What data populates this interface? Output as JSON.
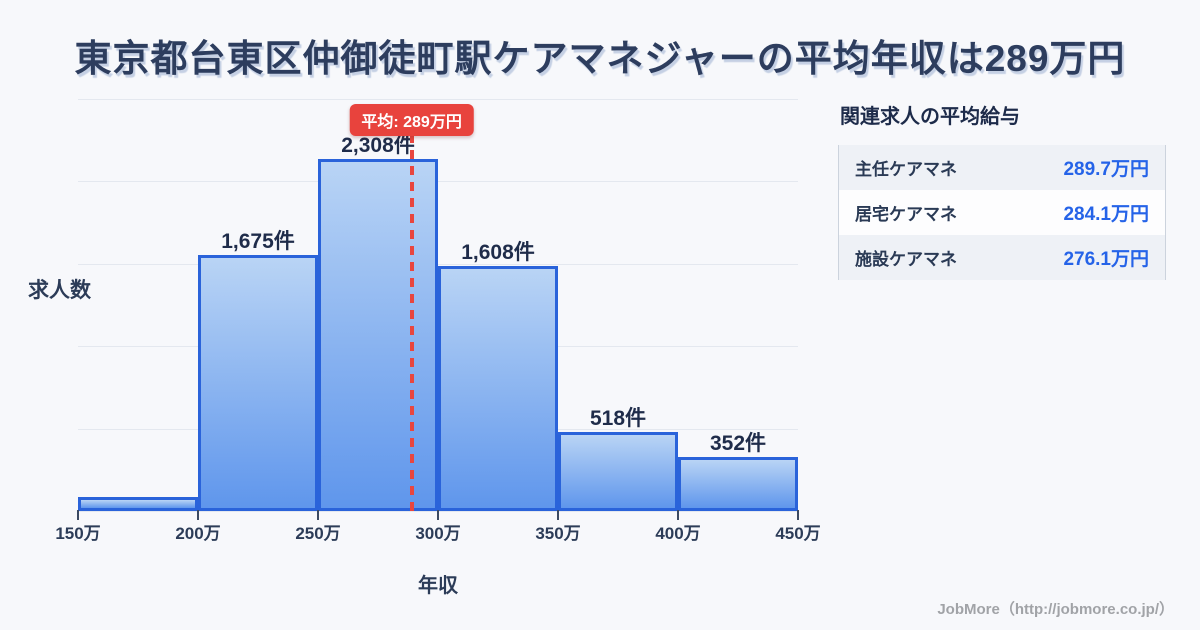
{
  "page": {
    "title": "東京都台東区仲御徒町駅ケアマネジャーの平均年収は289万円"
  },
  "chart_data": {
    "type": "bar",
    "title": "東京都台東区仲御徒町駅ケアマネジャーの平均年収は289万円",
    "categories": [
      "150万-200万",
      "200万-250万",
      "250万-300万",
      "300万-350万",
      "350万-400万",
      "400万-450万"
    ],
    "values": [
      90,
      1675,
      2308,
      1608,
      518,
      352
    ],
    "bar_labels": [
      "",
      "1,675件",
      "2,308件",
      "1,608件",
      "518件",
      "352件"
    ],
    "x_tick_labels": [
      "150万",
      "200万",
      "250万",
      "300万",
      "350万",
      "400万",
      "450万"
    ],
    "x_range": [
      150,
      450
    ],
    "ylim": [
      0,
      2700
    ],
    "grid": true,
    "gridline_count": 6,
    "xlabel": "年収",
    "ylabel": "求人数",
    "legend": null,
    "average_line": {
      "x_value": 289,
      "label": "平均: 289万円"
    },
    "colors": {
      "bar_fill_top": "#b9d4f5",
      "bar_fill_bottom": "#5f96ec",
      "bar_border": "#2a63da",
      "average_line": "#e8463f",
      "badge_bg": "#e8433d",
      "badge_text": "#ffffff",
      "gridline": "#e4e8ef",
      "axis_text": "#2c3c58"
    }
  },
  "side_panel": {
    "title": "関連求人の平均給与",
    "rows": [
      {
        "label": "主任ケアマネ",
        "value": "289.7万円"
      },
      {
        "label": "居宅ケアマネ",
        "value": "284.1万円"
      },
      {
        "label": "施設ケアマネ",
        "value": "276.1万円"
      }
    ],
    "value_color": "#2563e8"
  },
  "footer": {
    "credit": "JobMore（http://jobmore.co.jp/）"
  }
}
